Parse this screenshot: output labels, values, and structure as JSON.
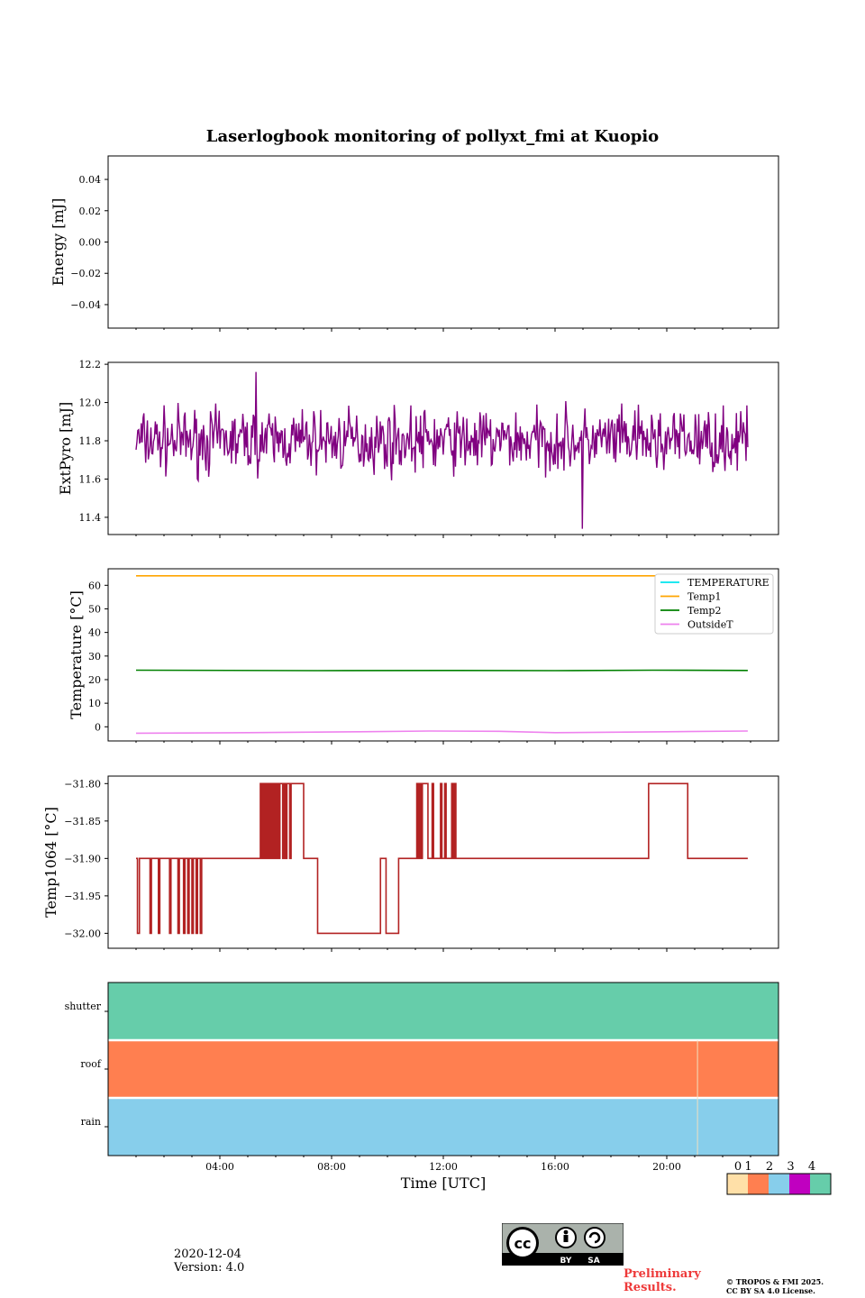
{
  "title": "Laserlogbook monitoring of pollyxt_fmi at Kuopio",
  "date": "2020-12-04",
  "version": "Version: 4.0",
  "preliminary": [
    "Preliminary",
    "Results."
  ],
  "copyright": [
    "© TROPOS & FMI 2025.",
    "CC BY SA 4.0 License."
  ],
  "license_badge": [
    "BY",
    "SA"
  ],
  "x_axis": {
    "label": "Time [UTC]",
    "ticks": [
      "04:00",
      "08:00",
      "12:00",
      "16:00",
      "20:00"
    ],
    "tick_hours": [
      4,
      8,
      12,
      16,
      20
    ],
    "range_hours": [
      0,
      24
    ]
  },
  "chart_data": [
    {
      "type": "line",
      "name": "energy",
      "ylabel": "Energy [mJ]",
      "ylim": [
        -0.055,
        0.055
      ],
      "yticks": [
        -0.04,
        -0.02,
        0.0,
        0.02,
        0.04
      ],
      "ytick_labels": [
        "−0.04",
        "−0.02",
        "0.00",
        "0.02",
        "0.04"
      ],
      "series": []
    },
    {
      "type": "line",
      "name": "extpyro",
      "ylabel": "ExtPyro [mJ]",
      "ylim": [
        11.31,
        12.21
      ],
      "yticks": [
        11.4,
        11.6,
        11.8,
        12.0,
        12.2
      ],
      "ytick_labels": [
        "11.4",
        "11.6",
        "11.8",
        "12.0",
        "12.2"
      ],
      "series": [
        {
          "name": "ExtPyro",
          "color": "#800080",
          "x_range": [
            1.0,
            22.9
          ],
          "mean": 11.8,
          "spread": 0.1,
          "min": 11.34,
          "max": 12.16
        }
      ]
    },
    {
      "type": "line",
      "name": "temperature",
      "ylabel": "Temperature [°C]",
      "ylim": [
        -6,
        67
      ],
      "yticks": [
        0,
        10,
        20,
        30,
        40,
        50,
        60
      ],
      "ytick_labels": [
        "0",
        "10",
        "20",
        "30",
        "40",
        "50",
        "60"
      ],
      "legend": "top-right",
      "series": [
        {
          "name": "TEMPERATURE",
          "color": "#00e5ee",
          "x": [],
          "y": []
        },
        {
          "name": "Temp1",
          "color": "#ffa500",
          "x": [
            1.0,
            22.9
          ],
          "y": [
            64,
            64
          ]
        },
        {
          "name": "Temp2",
          "color": "#008000",
          "x": [
            1.0,
            7.5,
            12,
            16,
            19.5,
            22.9
          ],
          "y": [
            24,
            23.8,
            23.9,
            23.8,
            24,
            23.9
          ]
        },
        {
          "name": "OutsideT",
          "color": "#ee82ee",
          "x": [
            1.0,
            5,
            9,
            11.5,
            14,
            16,
            20,
            22.9
          ],
          "y": [
            -2.7,
            -2.5,
            -2.1,
            -1.8,
            -1.9,
            -2.5,
            -2.1,
            -1.8
          ]
        }
      ]
    },
    {
      "type": "line",
      "name": "temp1064",
      "ylabel": "Temp1064 [°C]",
      "ylim": [
        -32.02,
        -31.79
      ],
      "yticks": [
        -32.0,
        -31.95,
        -31.9,
        -31.85,
        -31.8
      ],
      "ytick_labels": [
        "−32.00",
        "−31.95",
        "−31.90",
        "−31.85",
        "−31.80"
      ],
      "series": [
        {
          "name": "Temp1064",
          "color": "#b22222",
          "x": [
            1.0,
            1.05,
            1.1,
            1.12,
            1.15,
            1.5,
            1.55,
            1.8,
            1.85,
            2.2,
            2.25,
            2.5,
            2.55,
            2.7,
            2.75,
            2.85,
            2.9,
            3.0,
            3.05,
            3.15,
            3.2,
            3.3,
            3.35,
            5.4,
            5.45,
            5.5,
            5.55,
            5.6,
            5.65,
            5.7,
            5.75,
            5.8,
            5.85,
            5.9,
            5.95,
            6.0,
            6.05,
            6.1,
            6.15,
            6.25,
            6.3,
            6.35,
            6.4,
            6.5,
            6.55,
            6.6,
            6.9,
            7.0,
            7.4,
            7.5,
            7.6,
            9.7,
            9.75,
            9.9,
            9.95,
            10.3,
            10.4,
            11.0,
            11.05,
            11.1,
            11.15,
            11.2,
            11.25,
            11.4,
            11.45,
            11.6,
            11.65,
            11.9,
            11.95,
            12.05,
            12.1,
            12.3,
            12.35,
            12.4,
            12.45,
            19.3,
            19.35,
            20.7,
            20.75,
            22.9
          ],
          "y": [
            -31.9,
            -32.0,
            -32.0,
            -31.9,
            -31.9,
            -32.0,
            -31.9,
            -32.0,
            -31.9,
            -32.0,
            -31.9,
            -32.0,
            -31.9,
            -32.0,
            -31.9,
            -32.0,
            -31.9,
            -32.0,
            -31.9,
            -32.0,
            -31.9,
            -32.0,
            -31.9,
            -31.9,
            -31.8,
            -31.9,
            -31.8,
            -31.9,
            -31.8,
            -31.9,
            -31.8,
            -31.9,
            -31.8,
            -31.9,
            -31.8,
            -31.9,
            -31.8,
            -31.9,
            -31.8,
            -31.9,
            -31.8,
            -31.9,
            -31.8,
            -31.9,
            -31.8,
            -31.8,
            -31.8,
            -31.9,
            -31.9,
            -32.0,
            -32.0,
            -32.0,
            -31.9,
            -31.9,
            -32.0,
            -32.0,
            -31.9,
            -31.9,
            -31.8,
            -31.9,
            -31.8,
            -31.9,
            -31.8,
            -31.8,
            -31.9,
            -31.8,
            -31.9,
            -31.8,
            -31.9,
            -31.8,
            -31.9,
            -31.8,
            -31.9,
            -31.8,
            -31.9,
            -31.9,
            -31.8,
            -31.8,
            -31.9,
            -31.9
          ]
        }
      ]
    },
    {
      "type": "heatmap",
      "name": "status",
      "rows": [
        "shutter",
        "roof",
        "rain"
      ],
      "row_values": [
        4,
        1,
        2
      ],
      "colorbar": {
        "labels": [
          "0",
          "1",
          "2",
          "3",
          "4"
        ],
        "colors": [
          "#ffe0a8",
          "#ff7f50",
          "#87ceeb",
          "#c000c0",
          "#66cdaa"
        ]
      },
      "notes": "roof/rain status changes briefly near 21:00 UTC"
    }
  ]
}
